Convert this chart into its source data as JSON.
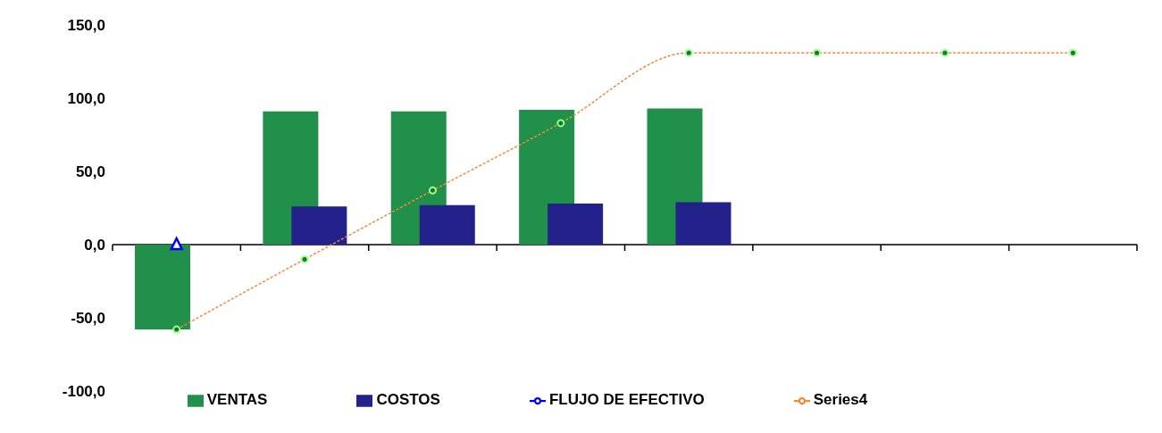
{
  "chart_data": {
    "type": "bar",
    "categories": [
      null,
      null,
      null,
      null,
      null,
      null,
      null,
      null
    ],
    "series": [
      {
        "name": "VENTAS",
        "color": "#21904a",
        "values": [
          -58,
          91,
          91,
          92,
          93,
          null,
          null,
          null
        ]
      },
      {
        "name": "COSTOS",
        "color": "#22228a",
        "values": [
          null,
          26,
          27,
          28,
          29,
          null,
          null,
          null
        ]
      },
      {
        "name": "FLUJO DE EFECTIVO",
        "type": "line",
        "color": "#0000ff",
        "marker": "triangle",
        "values": [
          0,
          null,
          null,
          null,
          null,
          null,
          null,
          null
        ]
      },
      {
        "name": "Series4",
        "type": "line",
        "color": "#f5883a",
        "marker": "circle",
        "line_style": "dotted",
        "values": [
          -58,
          -10,
          37,
          83,
          131,
          131,
          131,
          131
        ]
      }
    ],
    "ylim": [
      -100,
      150
    ],
    "yticks": [
      {
        "value": -100,
        "label": "-100,0"
      },
      {
        "value": -50,
        "label": "-50,0"
      },
      {
        "value": 0,
        "label": "0,0"
      },
      {
        "value": 50,
        "label": "50,0"
      },
      {
        "value": 100,
        "label": "100,0"
      },
      {
        "value": 150,
        "label": "150,0"
      }
    ],
    "legend": "bottom"
  }
}
